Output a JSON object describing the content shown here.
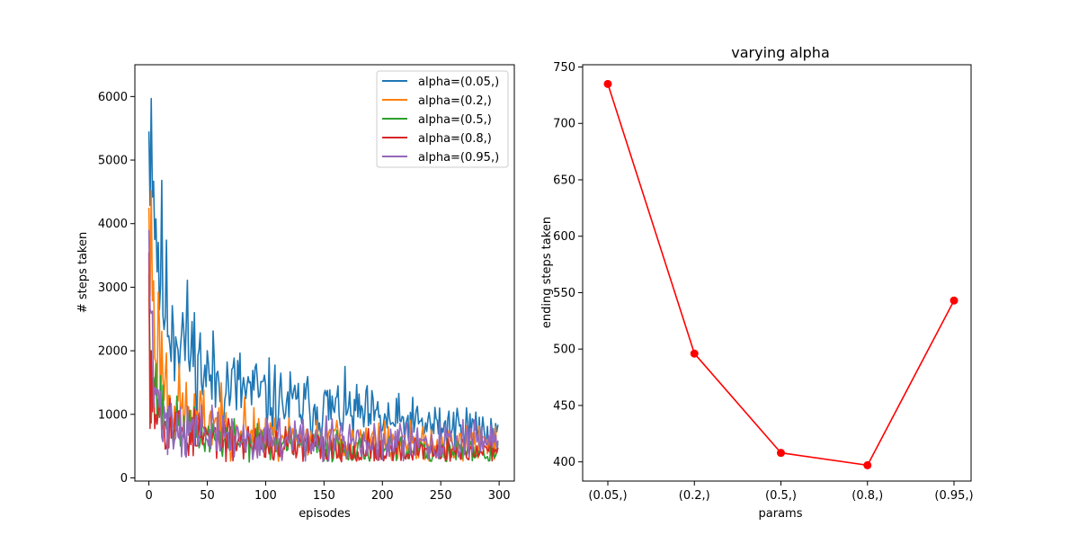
{
  "chart_data": [
    {
      "type": "line",
      "title": "",
      "xlabel": "episodes",
      "ylabel": "# steps taken",
      "xlim": [
        -12,
        313
      ],
      "ylim": [
        -50,
        6500
      ],
      "xticks": [
        0,
        50,
        100,
        150,
        200,
        250,
        300
      ],
      "yticks": [
        0,
        1000,
        2000,
        3000,
        4000,
        5000,
        6000
      ],
      "legend": "upper right",
      "grid": false,
      "series": [
        {
          "name": "alpha=(0.05,)",
          "color": "#1f77b4",
          "start": 5450,
          "anchors": [
            [
              0,
              5450
            ],
            [
              1,
              6150
            ],
            [
              2,
              5600
            ],
            [
              3,
              6180
            ],
            [
              5,
              4300
            ],
            [
              7,
              3800
            ],
            [
              10,
              3300
            ],
            [
              15,
              2600
            ],
            [
              20,
              2500
            ],
            [
              30,
              2200
            ],
            [
              40,
              1900
            ],
            [
              50,
              1600
            ],
            [
              70,
              1450
            ],
            [
              90,
              1350
            ],
            [
              100,
              1250
            ],
            [
              120,
              1150
            ],
            [
              150,
              1100
            ],
            [
              180,
              1000
            ],
            [
              200,
              900
            ],
            [
              220,
              850
            ],
            [
              250,
              820
            ],
            [
              280,
              780
            ],
            [
              299,
              700
            ]
          ],
          "noise": 0.24,
          "seed": 11
        },
        {
          "name": "alpha=(0.2,)",
          "color": "#ff7f0e",
          "start": 4250,
          "anchors": [
            [
              0,
              4250
            ],
            [
              1,
              3500
            ],
            [
              3,
              3400
            ],
            [
              5,
              2400
            ],
            [
              10,
              1900
            ],
            [
              15,
              1500
            ],
            [
              20,
              1250
            ],
            [
              30,
              1050
            ],
            [
              40,
              950
            ],
            [
              50,
              900
            ],
            [
              70,
              800
            ],
            [
              100,
              700
            ],
            [
              150,
              600
            ],
            [
              200,
              550
            ],
            [
              250,
              520
            ],
            [
              299,
              500
            ]
          ],
          "noise": 0.28,
          "seed": 23
        },
        {
          "name": "alpha=(0.5,)",
          "color": "#2ca02c",
          "start": 3200,
          "anchors": [
            [
              0,
              3200
            ],
            [
              1,
              2300
            ],
            [
              3,
              1900
            ],
            [
              5,
              1500
            ],
            [
              10,
              1100
            ],
            [
              15,
              950
            ],
            [
              20,
              850
            ],
            [
              30,
              750
            ],
            [
              50,
              650
            ],
            [
              80,
              580
            ],
            [
              100,
              540
            ],
            [
              150,
              480
            ],
            [
              200,
              430
            ],
            [
              250,
              410
            ],
            [
              299,
              400
            ]
          ],
          "noise": 0.26,
          "seed": 37
        },
        {
          "name": "alpha=(0.8,)",
          "color": "#d62728",
          "start": 3550,
          "anchors": [
            [
              0,
              3550
            ],
            [
              1,
              2100
            ],
            [
              3,
              1700
            ],
            [
              5,
              1300
            ],
            [
              10,
              1050
            ],
            [
              20,
              850
            ],
            [
              30,
              700
            ],
            [
              50,
              620
            ],
            [
              80,
              560
            ],
            [
              100,
              520
            ],
            [
              150,
              470
            ],
            [
              200,
              440
            ],
            [
              250,
              420
            ],
            [
              299,
              390
            ]
          ],
          "noise": 0.3,
          "seed": 53
        },
        {
          "name": "alpha=(0.95,)",
          "color": "#9467bd",
          "start": 3900,
          "anchors": [
            [
              0,
              3900
            ],
            [
              1,
              2800
            ],
            [
              3,
              1800
            ],
            [
              5,
              1300
            ],
            [
              10,
              1050
            ],
            [
              20,
              850
            ],
            [
              30,
              780
            ],
            [
              50,
              700
            ],
            [
              80,
              620
            ],
            [
              100,
              600
            ],
            [
              150,
              560
            ],
            [
              200,
              550
            ],
            [
              250,
              560
            ],
            [
              290,
              600
            ],
            [
              299,
              620
            ]
          ],
          "noise": 0.3,
          "seed": 71
        }
      ]
    },
    {
      "type": "line",
      "title": "varying alpha",
      "xlabel": "params",
      "ylabel": "ending steps taken",
      "categories": [
        "(0.05,)",
        "(0.2,)",
        "(0.5,)",
        "(0.8,)",
        "(0.95,)"
      ],
      "values": [
        735,
        496,
        408,
        397,
        543
      ],
      "ylim": [
        383,
        752
      ],
      "yticks": [
        400,
        450,
        500,
        550,
        600,
        650,
        700,
        750
      ],
      "color": "#ff0000",
      "marker": "o",
      "grid": false
    }
  ]
}
